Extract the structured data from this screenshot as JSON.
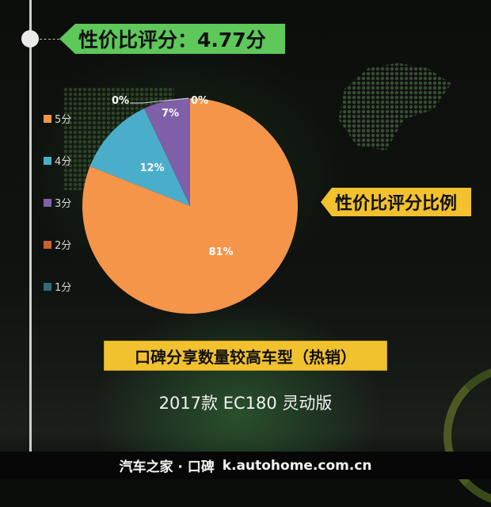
{
  "header": {
    "rating_banner": "性价比评分：4.77分"
  },
  "side_banner": "性价比评分比例",
  "bottom_banner": "口碑分享数量较高车型（热销）",
  "model_name": "2017款 EC180 灵动版",
  "footer": {
    "brand": "汽车之家 · 口碑",
    "url": "k.autohome.com.cn"
  },
  "colors": {
    "green_banner": "#5ec85a",
    "yellow_banner": "#f2c12e"
  },
  "legend": [
    {
      "label": "5分",
      "color": "#f5954a"
    },
    {
      "label": "4分",
      "color": "#4aaecb"
    },
    {
      "label": "3分",
      "color": "#7e5fa8"
    },
    {
      "label": "2分",
      "color": "#c8622a"
    },
    {
      "label": "1分",
      "color": "#2e6b80"
    }
  ],
  "chart_data": {
    "type": "pie",
    "title": "性价比评分比例",
    "categories": [
      "5分",
      "4分",
      "3分",
      "2分",
      "1分"
    ],
    "values": [
      81,
      12,
      7,
      0,
      0
    ],
    "labels": [
      "81%",
      "12%",
      "7%",
      "0%",
      "0%"
    ],
    "colors": [
      "#f5954a",
      "#4aaecb",
      "#7e5fa8",
      "#c8622a",
      "#2e6b80"
    ],
    "start_angle": "12 o'clock, clockwise",
    "legend_position": "left",
    "overall_score": 4.77
  }
}
